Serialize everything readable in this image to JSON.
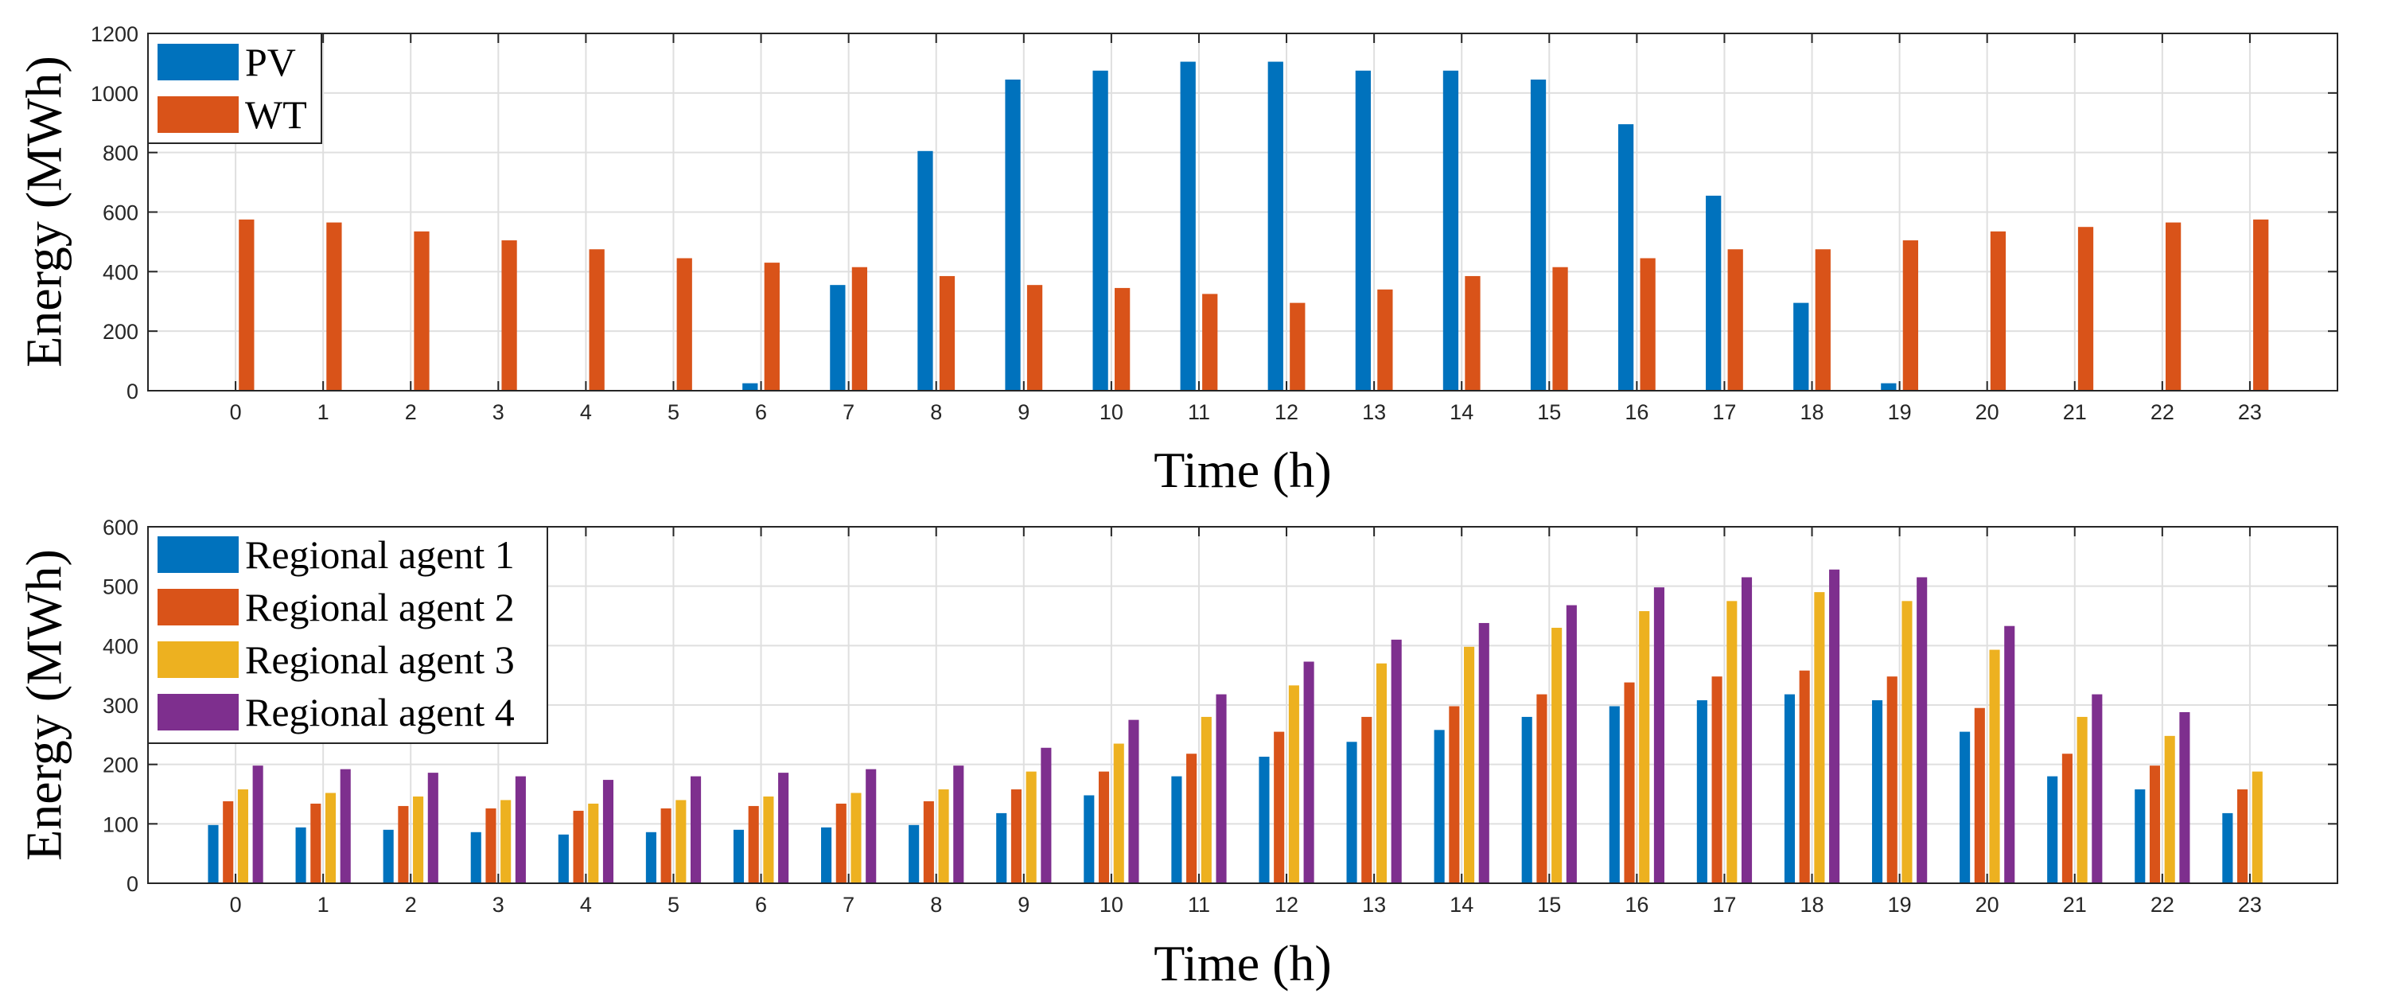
{
  "chart_data": [
    {
      "type": "bar",
      "title": "",
      "xlabel": "Time (h)",
      "ylabel": "Energy (MWh)",
      "categories": [
        "0",
        "1",
        "2",
        "3",
        "4",
        "5",
        "6",
        "7",
        "8",
        "9",
        "10",
        "11",
        "12",
        "13",
        "14",
        "15",
        "16",
        "17",
        "18",
        "19",
        "20",
        "21",
        "22",
        "23"
      ],
      "ylim": [
        0,
        1200
      ],
      "yticks": [
        "0",
        "200",
        "400",
        "600",
        "800",
        "1000",
        "1200"
      ],
      "grid": true,
      "legend_location": "top-left",
      "series": [
        {
          "name": "PV",
          "color": "#0072BD",
          "values": [
            0,
            0,
            0,
            0,
            0,
            0,
            25,
            355,
            805,
            1045,
            1075,
            1105,
            1105,
            1075,
            1075,
            1045,
            895,
            655,
            295,
            25,
            0,
            0,
            0,
            0
          ]
        },
        {
          "name": "WT",
          "color": "#D95319",
          "values": [
            575,
            565,
            535,
            505,
            475,
            445,
            430,
            415,
            385,
            355,
            345,
            325,
            295,
            340,
            385,
            415,
            445,
            475,
            475,
            505,
            535,
            550,
            565,
            575
          ]
        }
      ]
    },
    {
      "type": "bar",
      "title": "",
      "xlabel": "Time (h)",
      "ylabel": "Energy (MWh)",
      "categories": [
        "0",
        "1",
        "2",
        "3",
        "4",
        "5",
        "6",
        "7",
        "8",
        "9",
        "10",
        "11",
        "12",
        "13",
        "14",
        "15",
        "16",
        "17",
        "18",
        "19",
        "20",
        "21",
        "22",
        "23"
      ],
      "ylim": [
        0,
        600
      ],
      "yticks": [
        "0",
        "100",
        "200",
        "300",
        "400",
        "500",
        "600"
      ],
      "grid": true,
      "legend_location": "top-left",
      "series": [
        {
          "name": "Regional agent 1",
          "color": "#0072BD",
          "values": [
            98,
            94,
            90,
            86,
            82,
            86,
            90,
            94,
            98,
            118,
            148,
            180,
            213,
            238,
            258,
            280,
            298,
            308,
            318,
            308,
            255,
            180,
            158,
            118
          ]
        },
        {
          "name": "Regional agent 2",
          "color": "#D95319",
          "values": [
            138,
            134,
            130,
            126,
            122,
            126,
            130,
            134,
            138,
            158,
            188,
            218,
            255,
            280,
            298,
            318,
            338,
            348,
            358,
            348,
            295,
            218,
            198,
            158
          ]
        },
        {
          "name": "Regional agent 3",
          "color": "#EDB120",
          "values": [
            158,
            152,
            146,
            140,
            134,
            140,
            146,
            152,
            158,
            188,
            235,
            280,
            333,
            370,
            398,
            430,
            458,
            475,
            490,
            475,
            393,
            280,
            248,
            188
          ]
        },
        {
          "name": "Regional agent 4",
          "color": "#7E2F8E",
          "values": [
            198,
            192,
            186,
            180,
            174,
            180,
            186,
            192,
            198,
            228,
            275,
            318,
            373,
            410,
            438,
            468,
            498,
            515,
            528,
            515,
            433,
            318,
            288,
            0
          ]
        }
      ]
    }
  ]
}
